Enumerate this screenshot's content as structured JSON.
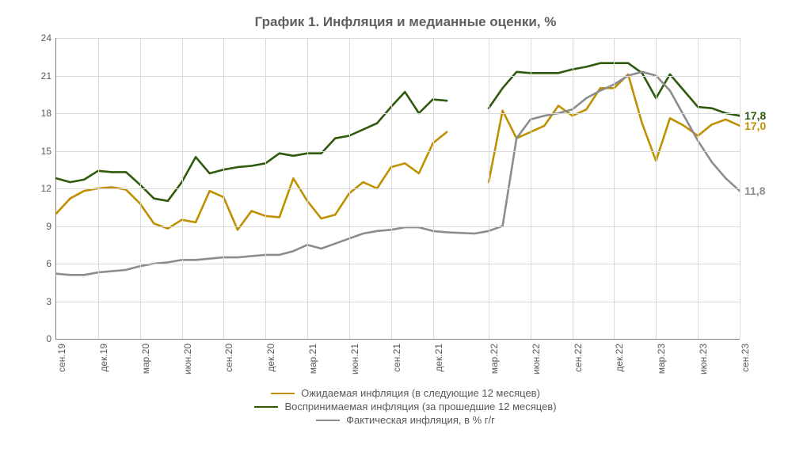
{
  "title": "График 1. Инфляция и медианные оценки, %",
  "title_fontsize": 17,
  "title_color": "#5f5f5f",
  "background_color": "#ffffff",
  "grid_color": "#d9d9d9",
  "axis_color": "#808080",
  "tick_label_color": "#595959",
  "tick_label_fontsize": 12,
  "ylim": [
    0,
    24
  ],
  "ytick_step": 3,
  "yticks": [
    0,
    3,
    6,
    9,
    12,
    15,
    18,
    21,
    24
  ],
  "x_categories": [
    "сен.19",
    "дек.19",
    "мар.20",
    "июн.20",
    "сен.20",
    "дек.20",
    "мар.21",
    "июн.21",
    "сен.21",
    "дек.21",
    "мар.22",
    "июн.22",
    "сен.22",
    "дек.22",
    "мар.23",
    "июн.23",
    "сен.23"
  ],
  "x_minor_per_major": 3,
  "x_break": {
    "enabled": true,
    "after_index_minor": 28,
    "gap_units": 1
  },
  "series": [
    {
      "id": "expected",
      "label": "Ожидаемая инфляция (в следующие 12 месяцев)",
      "color": "#bf9000",
      "line_width": 2.6,
      "end_label": "17,0",
      "end_value": 17.0,
      "data": [
        10.0,
        11.2,
        11.8,
        12.0,
        12.1,
        11.9,
        10.8,
        9.2,
        8.8,
        9.5,
        9.3,
        11.8,
        11.3,
        8.7,
        10.2,
        9.8,
        9.7,
        12.8,
        11.0,
        9.6,
        9.9,
        11.6,
        12.5,
        12.0,
        13.7,
        14.0,
        13.2,
        15.6,
        16.5,
        null,
        12.5,
        18.2,
        16.0,
        16.5,
        17.0,
        18.6,
        17.8,
        18.3,
        20.0,
        20.0,
        21.1,
        17.2,
        14.2,
        17.6,
        17.0,
        16.2,
        17.1,
        17.5,
        17.0
      ]
    },
    {
      "id": "perceived",
      "label": "Воспринимаемая инфляция (за прошедшие 12 месяцев)",
      "color": "#2e5a0c",
      "line_width": 2.6,
      "end_label": "17,8",
      "end_value": 17.8,
      "data": [
        12.8,
        12.5,
        12.7,
        13.4,
        13.3,
        13.3,
        12.3,
        11.2,
        11.0,
        12.5,
        14.5,
        13.2,
        13.5,
        13.7,
        13.8,
        14.0,
        14.8,
        14.6,
        14.8,
        14.8,
        16.0,
        16.2,
        16.7,
        17.2,
        18.5,
        19.7,
        18.0,
        19.1,
        19.0,
        null,
        18.4,
        20.0,
        21.3,
        21.2,
        21.2,
        21.2,
        21.5,
        21.7,
        22.0,
        22.0,
        22.0,
        21.2,
        19.2,
        21.1,
        19.8,
        18.5,
        18.4,
        18.0,
        17.8
      ]
    },
    {
      "id": "actual",
      "label": "Фактическая инфляция, в % г/г",
      "color": "#8c8c8c",
      "line_width": 2.6,
      "end_label": "11,8",
      "end_value": 11.8,
      "data": [
        5.2,
        5.1,
        5.1,
        5.3,
        5.4,
        5.5,
        5.8,
        6.0,
        6.1,
        6.3,
        6.3,
        6.4,
        6.5,
        6.5,
        6.6,
        6.7,
        6.7,
        7.0,
        7.5,
        7.2,
        7.6,
        8.0,
        8.4,
        8.6,
        8.7,
        8.9,
        8.9,
        8.6,
        8.5,
        8.4,
        8.6,
        9.0,
        16.0,
        17.5,
        17.8,
        18.0,
        18.3,
        19.2,
        19.8,
        20.3,
        21.0,
        21.3,
        21.0,
        19.8,
        17.8,
        15.8,
        14.1,
        12.8,
        11.8
      ]
    }
  ],
  "legend": {
    "position": "bottom-center",
    "fontsize": 13
  }
}
